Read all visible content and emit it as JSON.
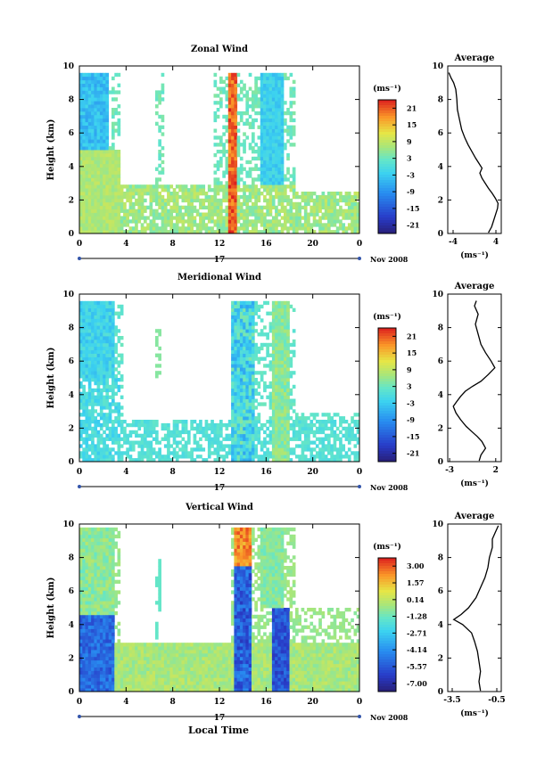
{
  "x_axis_title": "Local Time",
  "chart_data": [
    {
      "type": "heatmap",
      "title": "Zonal Wind",
      "ylabel": "Height (km)",
      "xlabel": "",
      "x_ticks": [
        "0",
        "4",
        "8",
        "12",
        "16",
        "20",
        "0"
      ],
      "y_ticks": [
        "0",
        "2",
        "4",
        "6",
        "8",
        "10"
      ],
      "date_label": "17",
      "month_label": "Nov 2008",
      "xlim": [
        0,
        24
      ],
      "ylim": [
        0,
        10
      ],
      "colorbar": {
        "unit": "(ms⁻¹)",
        "ticks": [
          "21",
          "15",
          "9",
          "3",
          "-3",
          "-9",
          "-15",
          "-21"
        ],
        "range": [
          -24,
          24
        ]
      },
      "average": {
        "title": "Average",
        "xlabel": "(ms⁻¹)",
        "x_ticks": [
          "-4",
          "4"
        ],
        "y_ticks": [
          "0",
          "2",
          "4",
          "6",
          "8",
          "10"
        ],
        "xlim": [
          -5,
          5
        ],
        "ylim": [
          0,
          10
        ],
        "profile": [
          [
            2.6,
            0.05
          ],
          [
            3.2,
            0.4
          ],
          [
            3.6,
            0.8
          ],
          [
            4.0,
            1.2
          ],
          [
            4.3,
            1.5
          ],
          [
            4.4,
            1.8
          ],
          [
            3.9,
            2.1
          ],
          [
            3.3,
            2.4
          ],
          [
            2.6,
            2.7
          ],
          [
            2.0,
            3.0
          ],
          [
            1.4,
            3.3
          ],
          [
            1.0,
            3.6
          ],
          [
            1.4,
            3.9
          ],
          [
            0.8,
            4.2
          ],
          [
            0.2,
            4.5
          ],
          [
            -0.5,
            4.9
          ],
          [
            -1.2,
            5.3
          ],
          [
            -1.8,
            5.7
          ],
          [
            -2.4,
            6.2
          ],
          [
            -2.8,
            6.8
          ],
          [
            -3.2,
            7.4
          ],
          [
            -3.3,
            8.0
          ],
          [
            -3.5,
            8.6
          ],
          [
            -3.9,
            9.0
          ],
          [
            -4.4,
            9.3
          ],
          [
            -4.8,
            9.6
          ]
        ]
      }
    },
    {
      "type": "heatmap",
      "title": "Meridional Wind",
      "ylabel": "Height (km)",
      "xlabel": "",
      "x_ticks": [
        "0",
        "4",
        "8",
        "12",
        "16",
        "20",
        "0"
      ],
      "y_ticks": [
        "0",
        "2",
        "4",
        "6",
        "8",
        "10"
      ],
      "date_label": "17",
      "month_label": "Nov 2008",
      "xlim": [
        0,
        24
      ],
      "ylim": [
        0,
        10
      ],
      "colorbar": {
        "unit": "(ms⁻¹)",
        "ticks": [
          "21",
          "15",
          "9",
          "3",
          "-3",
          "-9",
          "-15",
          "-21"
        ],
        "range": [
          -24,
          24
        ]
      },
      "average": {
        "title": "Average",
        "xlabel": "(ms⁻¹)",
        "x_ticks": [
          "-3",
          "2"
        ],
        "y_ticks": [
          "0",
          "2",
          "4",
          "6",
          "8",
          "10"
        ],
        "xlim": [
          -3.2,
          2.6
        ],
        "ylim": [
          0,
          10
        ],
        "profile": [
          [
            0.2,
            0.05
          ],
          [
            0.4,
            0.4
          ],
          [
            0.9,
            0.8
          ],
          [
            0.5,
            1.2
          ],
          [
            0.0,
            1.5
          ],
          [
            -0.6,
            1.8
          ],
          [
            -1.2,
            2.1
          ],
          [
            -1.8,
            2.5
          ],
          [
            -2.3,
            2.9
          ],
          [
            -2.6,
            3.3
          ],
          [
            -2.2,
            3.6
          ],
          [
            -1.8,
            3.9
          ],
          [
            -1.3,
            4.2
          ],
          [
            -0.5,
            4.5
          ],
          [
            0.4,
            4.8
          ],
          [
            1.2,
            5.2
          ],
          [
            1.9,
            5.6
          ],
          [
            1.5,
            6.0
          ],
          [
            0.9,
            6.5
          ],
          [
            0.4,
            7.0
          ],
          [
            0.1,
            7.6
          ],
          [
            -0.2,
            8.2
          ],
          [
            0.1,
            8.8
          ],
          [
            -0.3,
            9.3
          ],
          [
            -0.1,
            9.6
          ]
        ]
      }
    },
    {
      "type": "heatmap",
      "title": "Vertical Wind",
      "ylabel": "Height (km)",
      "xlabel": "",
      "x_ticks": [
        "0",
        "4",
        "8",
        "12",
        "16",
        "20",
        "0"
      ],
      "y_ticks": [
        "0",
        "2",
        "4",
        "6",
        "8",
        "10"
      ],
      "date_label": "17",
      "month_label": "Nov 2008",
      "xlim": [
        0,
        24
      ],
      "ylim": [
        0,
        10
      ],
      "colorbar": {
        "unit": "(ms⁻¹)",
        "ticks": [
          "3.00",
          "1.57",
          "0.14",
          "-1.28",
          "-2.71",
          "-4.14",
          "-5.57",
          "-7.00"
        ],
        "range": [
          -7.7,
          3.7
        ]
      },
      "average": {
        "title": "Average",
        "xlabel": "(ms⁻¹)",
        "x_ticks": [
          "-3.5",
          "-0.5"
        ],
        "y_ticks": [
          "0",
          "2",
          "4",
          "6",
          "8",
          "10"
        ],
        "xlim": [
          -3.8,
          -0.2
        ],
        "ylim": [
          0,
          10
        ],
        "profile": [
          [
            -1.6,
            0.05
          ],
          [
            -1.7,
            0.6
          ],
          [
            -1.6,
            1.2
          ],
          [
            -1.7,
            1.8
          ],
          [
            -1.8,
            2.4
          ],
          [
            -2.0,
            3.0
          ],
          [
            -2.2,
            3.5
          ],
          [
            -2.8,
            4.0
          ],
          [
            -3.4,
            4.3
          ],
          [
            -2.9,
            4.6
          ],
          [
            -2.4,
            5.0
          ],
          [
            -1.9,
            5.6
          ],
          [
            -1.6,
            6.2
          ],
          [
            -1.3,
            6.8
          ],
          [
            -1.1,
            7.4
          ],
          [
            -1.0,
            8.0
          ],
          [
            -0.8,
            8.6
          ],
          [
            -0.8,
            9.1
          ],
          [
            -0.6,
            9.5
          ],
          [
            -0.4,
            9.9
          ]
        ]
      }
    }
  ]
}
